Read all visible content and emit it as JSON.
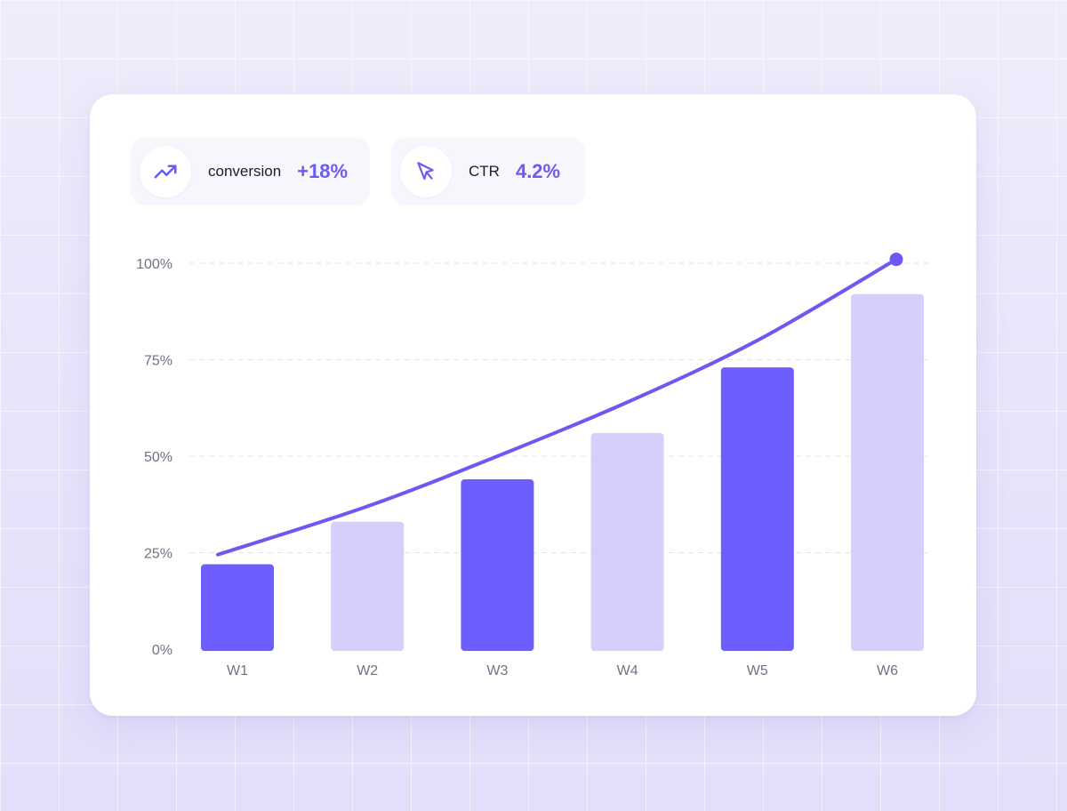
{
  "stats": [
    {
      "icon": "trending-up-icon",
      "label": "conversion",
      "value": "+18%"
    },
    {
      "icon": "cursor-arrow-icon",
      "label": "CTR",
      "value": "4.2%"
    }
  ],
  "colors": {
    "accent": "#6b5cff",
    "bar_dark": "#6d5eff",
    "bar_light": "#d6cefb",
    "line": "#6b59f2",
    "grid": "#e6e3f0",
    "value_text": "#6a5cf0"
  },
  "chart_data": {
    "type": "bar",
    "categories": [
      "W1",
      "W2",
      "W3",
      "W4",
      "W5",
      "W6"
    ],
    "values": [
      22,
      33,
      44,
      56,
      73,
      92
    ],
    "bar_shades": [
      "dark",
      "light",
      "dark",
      "light",
      "dark",
      "light"
    ],
    "trend_line": [
      24.5,
      37,
      50,
      64,
      80,
      101
    ],
    "ylim": [
      0,
      100
    ],
    "yticks": [
      0,
      25,
      50,
      75,
      100
    ],
    "ytick_labels": [
      "0%",
      "25%",
      "50%",
      "75%",
      "100%"
    ],
    "title": "",
    "xlabel": "",
    "ylabel": "",
    "grid": true,
    "legend": "none"
  }
}
